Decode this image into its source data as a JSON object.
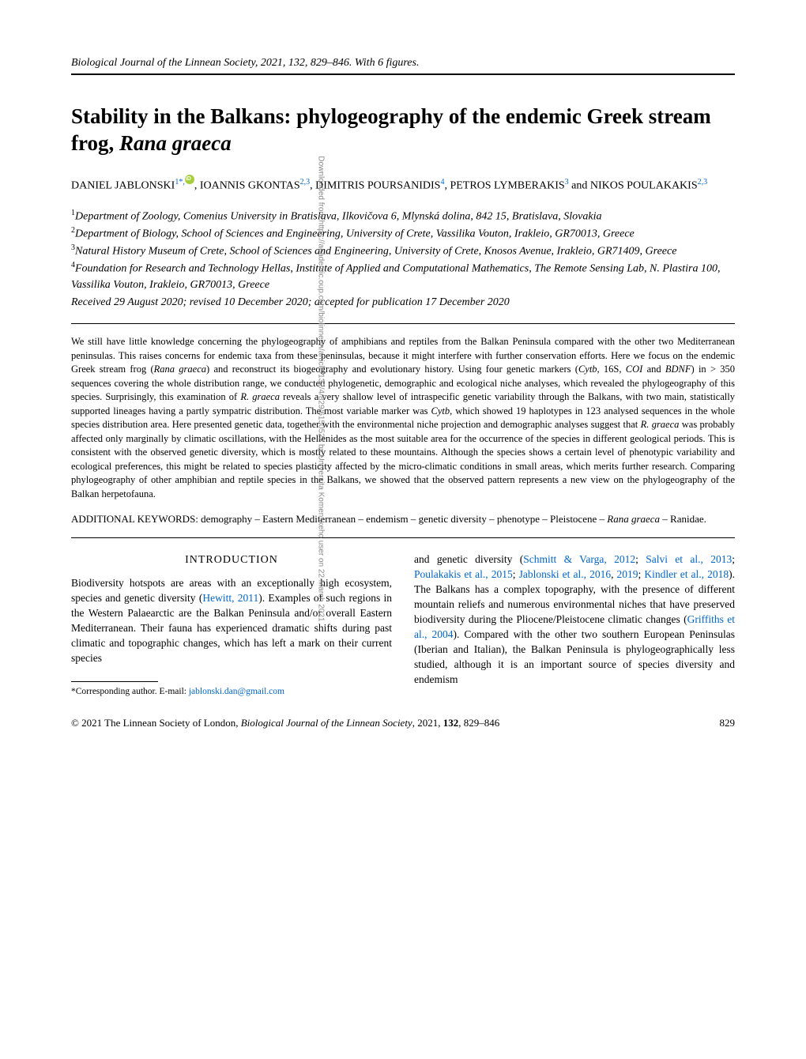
{
  "sidebar_text": "Downloaded from https://academic.oup.com/biolinnean/article/132/4/829/6150522 by Univerzita Komenskeho user on 22 March 2021",
  "journal_header": "Biological Journal of the Linnean Society, 2021, 132, 829–846. With 6 figures.",
  "title_parts": {
    "prefix": "Stability in the Balkans: phylogeography of the endemic Greek stream frog, ",
    "italic": "Rana graeca"
  },
  "authors": {
    "a1": "DANIEL JABLONSKI",
    "a1_sup": "1*,",
    "a2": ", IOANNIS GKONTAS",
    "a2_sup": "2,3",
    "a3": ", DIMITRIS POURSANIDIS",
    "a3_sup": "4",
    "a4": ", PETROS LYMBERAKIS",
    "a4_sup": "3",
    "a5": " and NIKOS POULAKAKIS",
    "a5_sup": "2,3"
  },
  "affiliations": {
    "n1": "1",
    "t1": "Department of Zoology, Comenius University in Bratislava, Ilkovičova 6, Mlynská dolina, 842 15, Bratislava, Slovakia",
    "n2": "2",
    "t2": "Department of Biology, School of Sciences and Engineering, University of Crete, Vassilika Vouton, Irakleio, GR70013, Greece",
    "n3": "3",
    "t3": "Natural History Museum of Crete, School of Sciences and Engineering, University of Crete, Knosos Avenue, Irakleio, GR71409, Greece",
    "n4": "4",
    "t4": "Foundation for Research and Technology Hellas, Institute of Applied and Computational Mathematics, The Remote Sensing Lab, N. Plastira 100, Vassilika Vouton, Irakleio, GR70013, Greece"
  },
  "received": "Received 29 August 2020; revised 10 December 2020; accepted for publication 17 December 2020",
  "abstract": {
    "p1": "We still have little knowledge concerning the phylogeography of amphibians and reptiles from the Balkan Peninsula compared with the other two Mediterranean peninsulas. This raises concerns for endemic taxa from these peninsulas, because it might interfere with further conservation efforts. Here we focus on the endemic Greek stream frog (",
    "i1": "Rana graeca",
    "p2": ") and reconstruct its biogeography and evolutionary history. Using four genetic markers (",
    "i2": "Cytb",
    "p3": ", 16S, ",
    "i3": "COI",
    "p4": " and ",
    "i4": "BDNF",
    "p5": ") in > 350 sequences covering the whole distribution range, we conducted phylogenetic, demographic and ecological niche analyses, which revealed the phylogeography of this species. Surprisingly, this examination of ",
    "i5": "R. graeca",
    "p6": " reveals a very shallow level of intraspecific genetic variability through the Balkans, with two main, statistically supported lineages having a partly sympatric distribution. The most variable marker was ",
    "i6": "Cytb",
    "p7": ", which showed 19 haplotypes in 123 analysed sequences in the whole species distribution area. Here presented genetic data, together with the environmental niche projection and demographic analyses suggest that ",
    "i7": "R. graeca",
    "p8": " was probably affected only marginally by climatic oscillations, with the Hellenides as the most suitable area for the occurrence of the species in different geological periods. This is consistent with the observed genetic diversity, which is mostly related to these mountains. Although the species shows a certain level of phenotypic variability and ecological preferences, this might be related to species plasticity affected by the micro-climatic conditions in small areas, which merits further research. Comparing phylogeography of other amphibian and reptile species in the Balkans, we showed that the observed pattern represents a new view on the phylogeography of the Balkan herpetofauna."
  },
  "keywords": {
    "label": "ADDITIONAL KEYWORDS:  ",
    "text1": "demography – Eastern Mediterranean – endemism – genetic diversity – phenotype – Pleistocene – ",
    "italic": "Rana graeca",
    "text2": " – Ranidae."
  },
  "intro_heading": "INTRODUCTION",
  "intro_left": {
    "p1": "Biodiversity hotspots are areas with an exceptionally high ecosystem, species and genetic diversity (",
    "c1": "Hewitt, 2011",
    "p2": "). Examples of such regions in the Western Palaearctic are the Balkan Peninsula and/or overall Eastern Mediterranean. Their fauna has experienced dramatic shifts during past climatic and topographic changes, which has left a mark on their current species"
  },
  "intro_right": {
    "p1": "and genetic diversity (",
    "c1": "Schmitt & Varga, 2012",
    "p2": "; ",
    "c2": "Salvi et al., 2013",
    "p3": "; ",
    "c3": "Poulakakis et al., 2015",
    "p4": "; ",
    "c4": "Jablonski et al., 2016",
    "p5": ", ",
    "c5": "2019",
    "p6": "; ",
    "c6": "Kindler et al., 2018",
    "p7": "). The Balkans has a complex topography, with the presence of different mountain reliefs and numerous environmental niches that have preserved biodiversity during the Pliocene/Pleistocene climatic changes (",
    "c7": "Griffiths et al., 2004",
    "p8": "). Compared with the other two southern European Peninsulas (Iberian and Italian), the Balkan Peninsula is phylogeographically less studied, although it is an important source of species diversity and endemism"
  },
  "footnote": {
    "text": "*Corresponding author. E-mail: ",
    "email": "jablonski.dan@gmail.com"
  },
  "footer": {
    "left1": "© 2021 The Linnean Society of London, ",
    "left_italic": "Biological Journal of the Linnean Society",
    "left2": ", 2021, ",
    "left_bold": "132",
    "left3": ", 829–846",
    "page": "829"
  },
  "colors": {
    "link": "#0066cc",
    "orcid": "#a6ce39",
    "text": "#000000",
    "bg": "#ffffff"
  }
}
